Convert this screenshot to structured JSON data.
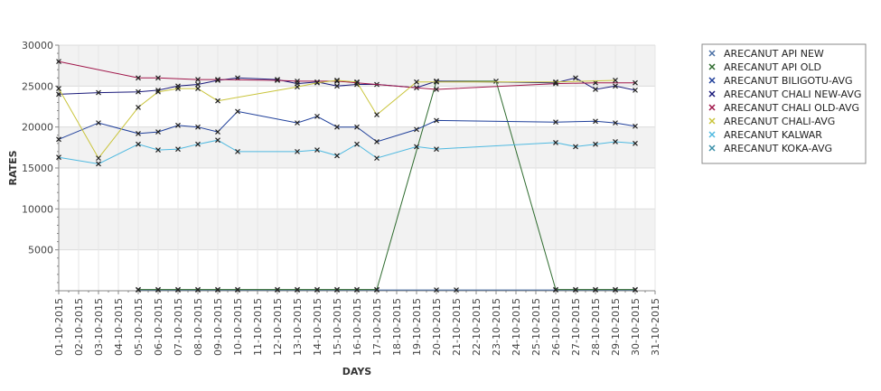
{
  "chart_data": {
    "type": "line",
    "title": "",
    "xlabel": "DAYS",
    "ylabel": "RATES",
    "ylim": [
      0,
      30000
    ],
    "yticks": [
      5000,
      10000,
      15000,
      20000,
      25000,
      30000
    ],
    "grid": "alternating horizontal bands",
    "legend_position": "right",
    "x": [
      "01-10-2015",
      "02-10-2015",
      "03-10-2015",
      "04-10-2015",
      "05-10-2015",
      "06-10-2015",
      "07-10-2015",
      "08-10-2015",
      "09-10-2015",
      "10-10-2015",
      "11-10-2015",
      "12-10-2015",
      "13-10-2015",
      "14-10-2015",
      "15-10-2015",
      "16-10-2015",
      "17-10-2015",
      "18-10-2015",
      "19-10-2015",
      "20-10-2015",
      "21-10-2015",
      "22-10-2015",
      "23-10-2015",
      "24-10-2015",
      "25-10-2015",
      "26-10-2015",
      "27-10-2015",
      "28-10-2015",
      "29-10-2015",
      "30-10-2015",
      "31-10-2015"
    ],
    "series": [
      {
        "name": "ARECANUT API NEW",
        "color": "#4a6fa5",
        "points": [
          [
            "05-10-2015",
            100
          ],
          [
            "06-10-2015",
            100
          ],
          [
            "07-10-2015",
            100
          ],
          [
            "08-10-2015",
            100
          ],
          [
            "09-10-2015",
            100
          ],
          [
            "10-10-2015",
            100
          ],
          [
            "12-10-2015",
            100
          ],
          [
            "13-10-2015",
            100
          ],
          [
            "14-10-2015",
            100
          ],
          [
            "15-10-2015",
            100
          ],
          [
            "16-10-2015",
            100
          ],
          [
            "17-10-2015",
            100
          ],
          [
            "20-10-2015",
            100
          ],
          [
            "21-10-2015",
            100
          ],
          [
            "26-10-2015",
            100
          ],
          [
            "27-10-2015",
            100
          ],
          [
            "28-10-2015",
            100
          ],
          [
            "29-10-2015",
            100
          ],
          [
            "30-10-2015",
            100
          ]
        ]
      },
      {
        "name": "ARECANUT API OLD",
        "color": "#2e6b2e",
        "points": [
          [
            "05-10-2015",
            150
          ],
          [
            "06-10-2015",
            150
          ],
          [
            "07-10-2015",
            150
          ],
          [
            "08-10-2015",
            150
          ],
          [
            "09-10-2015",
            150
          ],
          [
            "10-10-2015",
            150
          ],
          [
            "12-10-2015",
            150
          ],
          [
            "13-10-2015",
            150
          ],
          [
            "14-10-2015",
            150
          ],
          [
            "15-10-2015",
            150
          ],
          [
            "16-10-2015",
            150
          ],
          [
            "17-10-2015",
            150
          ],
          [
            "20-10-2015",
            25600
          ],
          [
            "23-10-2015",
            25600
          ],
          [
            "26-10-2015",
            150
          ],
          [
            "27-10-2015",
            150
          ],
          [
            "28-10-2015",
            150
          ],
          [
            "29-10-2015",
            150
          ],
          [
            "30-10-2015",
            150
          ]
        ]
      },
      {
        "name": "ARECANUT BILIGOTU-AVG",
        "color": "#1f3f9a",
        "points": [
          [
            "01-10-2015",
            18500
          ],
          [
            "03-10-2015",
            20500
          ],
          [
            "05-10-2015",
            19200
          ],
          [
            "06-10-2015",
            19400
          ],
          [
            "07-10-2015",
            20200
          ],
          [
            "08-10-2015",
            20000
          ],
          [
            "09-10-2015",
            19400
          ],
          [
            "10-10-2015",
            21900
          ],
          [
            "13-10-2015",
            20500
          ],
          [
            "14-10-2015",
            21300
          ],
          [
            "15-10-2015",
            20000
          ],
          [
            "16-10-2015",
            20000
          ],
          [
            "17-10-2015",
            18200
          ],
          [
            "19-10-2015",
            19700
          ],
          [
            "20-10-2015",
            20800
          ],
          [
            "26-10-2015",
            20600
          ],
          [
            "28-10-2015",
            20700
          ],
          [
            "29-10-2015",
            20500
          ],
          [
            "30-10-2015",
            20100
          ]
        ]
      },
      {
        "name": "ARECANUT CHALI NEW-AVG",
        "color": "#1a1a7a",
        "points": [
          [
            "01-10-2015",
            24000
          ],
          [
            "03-10-2015",
            24200
          ],
          [
            "05-10-2015",
            24300
          ],
          [
            "06-10-2015",
            24500
          ],
          [
            "07-10-2015",
            25000
          ],
          [
            "08-10-2015",
            25200
          ],
          [
            "09-10-2015",
            25700
          ],
          [
            "10-10-2015",
            26000
          ],
          [
            "12-10-2015",
            25800
          ],
          [
            "13-10-2015",
            25300
          ],
          [
            "14-10-2015",
            25500
          ],
          [
            "15-10-2015",
            25000
          ],
          [
            "16-10-2015",
            25200
          ],
          [
            "17-10-2015",
            25200
          ],
          [
            "19-10-2015",
            24800
          ],
          [
            "20-10-2015",
            25600
          ],
          [
            "26-10-2015",
            25400
          ],
          [
            "27-10-2015",
            26000
          ],
          [
            "28-10-2015",
            24600
          ],
          [
            "29-10-2015",
            25000
          ],
          [
            "30-10-2015",
            24500
          ]
        ]
      },
      {
        "name": "ARECANUT CHALI OLD-AVG",
        "color": "#a0164a",
        "points": [
          [
            "01-10-2015",
            28000
          ],
          [
            "05-10-2015",
            26000
          ],
          [
            "06-10-2015",
            26000
          ],
          [
            "08-10-2015",
            25800
          ],
          [
            "09-10-2015",
            25800
          ],
          [
            "12-10-2015",
            25700
          ],
          [
            "13-10-2015",
            25600
          ],
          [
            "15-10-2015",
            25600
          ],
          [
            "16-10-2015",
            25400
          ],
          [
            "20-10-2015",
            24600
          ],
          [
            "26-10-2015",
            25300
          ],
          [
            "28-10-2015",
            25400
          ],
          [
            "30-10-2015",
            25400
          ]
        ]
      },
      {
        "name": "ARECANUT CHALI-AVG",
        "color": "#c9c43a",
        "points": [
          [
            "01-10-2015",
            24700
          ],
          [
            "03-10-2015",
            16200
          ],
          [
            "05-10-2015",
            22400
          ],
          [
            "06-10-2015",
            24300
          ],
          [
            "07-10-2015",
            24700
          ],
          [
            "08-10-2015",
            24700
          ],
          [
            "09-10-2015",
            23200
          ],
          [
            "13-10-2015",
            24900
          ],
          [
            "14-10-2015",
            25400
          ],
          [
            "15-10-2015",
            25700
          ],
          [
            "16-10-2015",
            25500
          ],
          [
            "17-10-2015",
            21500
          ],
          [
            "19-10-2015",
            25500
          ],
          [
            "20-10-2015",
            25500
          ],
          [
            "26-10-2015",
            25500
          ],
          [
            "29-10-2015",
            25700
          ]
        ]
      },
      {
        "name": "ARECANUT KALWAR",
        "color": "#4fb9e0",
        "points": [
          [
            "01-10-2015",
            16300
          ],
          [
            "03-10-2015",
            15500
          ],
          [
            "05-10-2015",
            17900
          ],
          [
            "06-10-2015",
            17200
          ],
          [
            "07-10-2015",
            17300
          ],
          [
            "08-10-2015",
            17900
          ],
          [
            "09-10-2015",
            18400
          ],
          [
            "10-10-2015",
            17000
          ],
          [
            "13-10-2015",
            17000
          ],
          [
            "14-10-2015",
            17200
          ],
          [
            "15-10-2015",
            16500
          ],
          [
            "16-10-2015",
            17900
          ],
          [
            "17-10-2015",
            16200
          ],
          [
            "19-10-2015",
            17600
          ],
          [
            "20-10-2015",
            17300
          ],
          [
            "26-10-2015",
            18100
          ],
          [
            "27-10-2015",
            17600
          ],
          [
            "28-10-2015",
            17900
          ],
          [
            "29-10-2015",
            18200
          ],
          [
            "30-10-2015",
            18000
          ]
        ]
      },
      {
        "name": "ARECANUT KOKA-AVG",
        "color": "#3a8fa8",
        "points": []
      }
    ]
  }
}
